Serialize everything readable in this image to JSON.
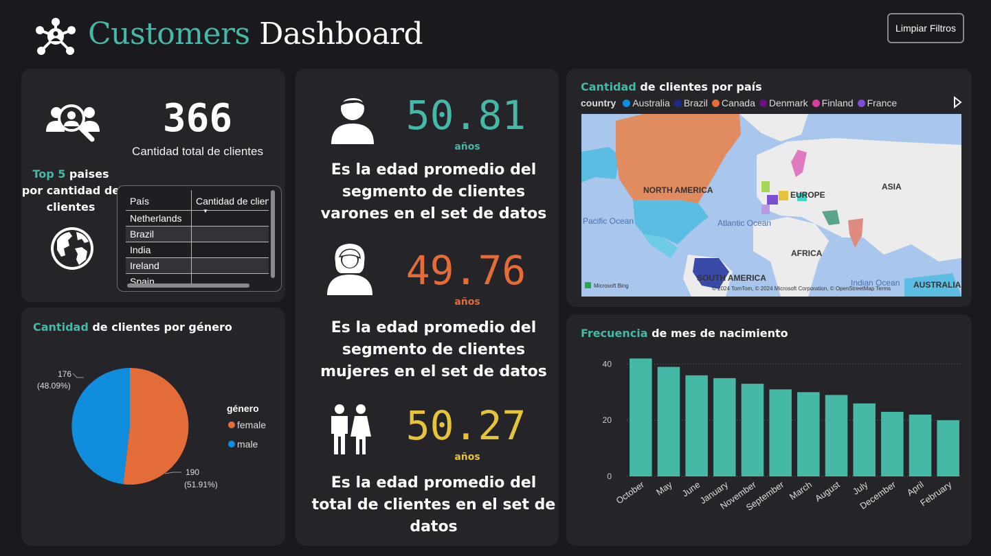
{
  "header": {
    "title_part1": "Customers",
    "title_part2": "Dashboard",
    "clear_filters": "Limpiar Filtros"
  },
  "summary": {
    "total_customers": "366",
    "total_label": "Cantidad total de clientes",
    "top5_title_accent": "Top 5",
    "top5_title_rest": " paises por cantidad de clientes",
    "table": {
      "col1": "País",
      "col2": "Cantidad de clientes",
      "rows": [
        "Netherlands",
        "Brazil",
        "India",
        "Ireland",
        "Spain"
      ]
    }
  },
  "gender_chart": {
    "title_accent": "Cantidad",
    "title_rest": " de clientes por género",
    "legend_title": "género",
    "female_label": "female",
    "male_label": "male",
    "male_value": "176",
    "male_pct": "(48.09%)",
    "female_value": "190",
    "female_pct": "(51.91%)",
    "colors": {
      "female": "#e46c39",
      "male": "#118ddd"
    }
  },
  "ages": {
    "male": {
      "value": "50.81",
      "unit": "años",
      "desc": "Es la edad promedio del segmento de clientes varones en el set de datos",
      "color": "#46b8a6"
    },
    "female": {
      "value": "49.76",
      "unit": "años",
      "desc": "Es la edad promedio del segmento de clientes mujeres en el set de datos",
      "color": "#e46c39"
    },
    "total": {
      "value": "50.27",
      "unit": "años",
      "desc": "Es la edad promedio del total de clientes en el set de datos",
      "color": "#e6c43a"
    }
  },
  "map": {
    "title_accent": "Cantidad",
    "title_rest": " de clientes por país",
    "legend_title": "country",
    "legend": [
      {
        "name": "Australia",
        "color": "#118ddd"
      },
      {
        "name": "Brazil",
        "color": "#1b2a8c"
      },
      {
        "name": "Canada",
        "color": "#e46c39"
      },
      {
        "name": "Denmark",
        "color": "#6b0f8a"
      },
      {
        "name": "Finland",
        "color": "#d63fa0"
      },
      {
        "name": "France",
        "color": "#7a4fd1"
      }
    ],
    "labels": {
      "north_america": "NORTH AMERICA",
      "europe": "EUROPE",
      "asia": "ASIA",
      "africa": "AFRICA",
      "south_america": "SOUTH AMERICA",
      "australia": "AUSTRALIA",
      "pacific": "Pacific Ocean",
      "atlantic": "Atlantic Ocean",
      "indian": "Indian Ocean",
      "bing": "Microsoft Bing",
      "copyright": "© 2024 TomTom, © 2024 Microsoft Corporation, © OpenStreetMap  Terms"
    }
  },
  "birth_chart": {
    "title_accent": "Frecuencia",
    "title_rest": " de mes de nacimiento"
  },
  "chart_data": {
    "type": "bar",
    "title": "Frecuencia de mes de nacimiento",
    "categories": [
      "October",
      "May",
      "June",
      "January",
      "November",
      "September",
      "March",
      "August",
      "July",
      "December",
      "April",
      "February"
    ],
    "values": [
      42,
      39,
      36,
      35,
      33,
      31,
      30,
      29,
      26,
      23,
      22,
      20
    ],
    "yticks": [
      0,
      20,
      40
    ],
    "ylim": [
      0,
      45
    ],
    "color": "#46b8a6",
    "grid": true
  }
}
